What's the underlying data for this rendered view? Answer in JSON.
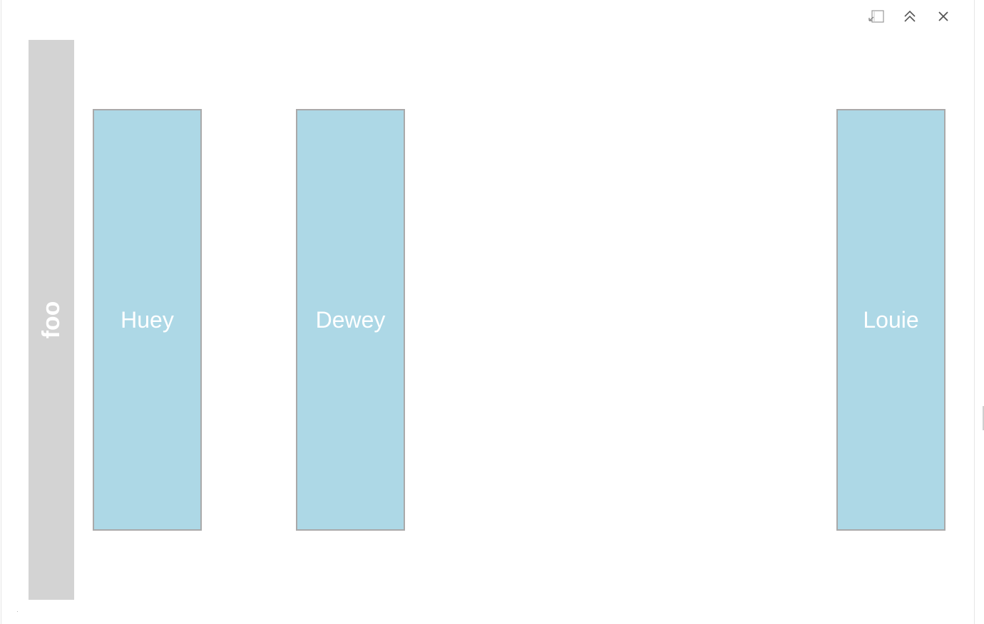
{
  "toolbar": {
    "icons": [
      "file-compare-icon",
      "chevron-double-up-icon",
      "close-icon"
    ]
  },
  "sidebar": {
    "label": "foo",
    "background": "#d3d3d3"
  },
  "cards": [
    {
      "label": "Huey"
    },
    {
      "label": "Dewey"
    },
    {
      "label": "Louie"
    }
  ],
  "colors": {
    "card_fill": "#add8e6",
    "card_border": "#a9a9a9",
    "card_text": "#ffffff",
    "icon": "#555555"
  }
}
